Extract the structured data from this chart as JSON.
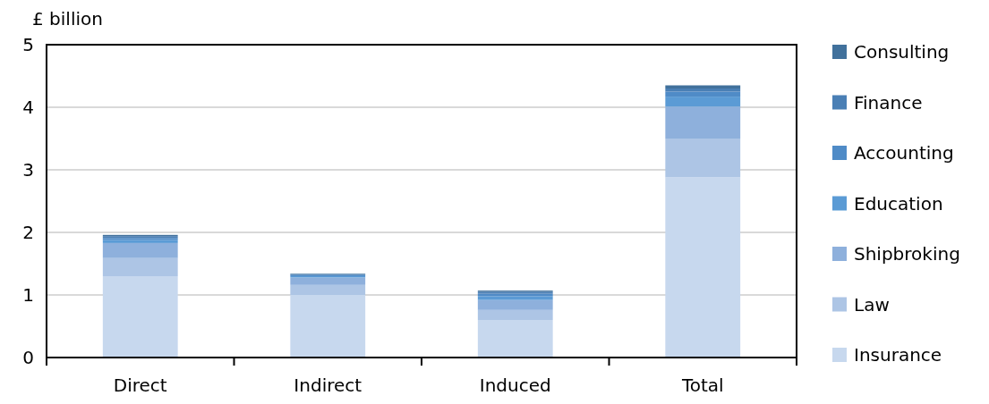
{
  "chart_data": {
    "type": "bar",
    "stacked": true,
    "ylabel": "£ billion",
    "categories": [
      "Direct",
      "Indirect",
      "Induced",
      "Total"
    ],
    "series": [
      {
        "name": "Insurance",
        "color": "#c7d8ee",
        "values": [
          1.3,
          1.0,
          0.6,
          2.88
        ]
      },
      {
        "name": "Law",
        "color": "#adc5e5",
        "values": [
          0.29,
          0.16,
          0.16,
          0.62
        ]
      },
      {
        "name": "Shipbroking",
        "color": "#8eb0dc",
        "values": [
          0.24,
          0.12,
          0.16,
          0.51
        ]
      },
      {
        "name": "Education",
        "color": "#5b9bd5",
        "values": [
          0.05,
          0.02,
          0.06,
          0.16
        ]
      },
      {
        "name": "Accounting",
        "color": "#4f8bc7",
        "values": [
          0.03,
          0.02,
          0.04,
          0.08
        ]
      },
      {
        "name": "Finance",
        "color": "#4a7fb5",
        "values": [
          0.03,
          0.01,
          0.03,
          0.05
        ]
      },
      {
        "name": "Consulting",
        "color": "#41719c",
        "values": [
          0.02,
          0.01,
          0.02,
          0.05
        ]
      }
    ],
    "ylim": [
      0,
      5
    ],
    "yticks": [
      0,
      1,
      2,
      3,
      4,
      5
    ],
    "grid": "y",
    "legend": "right"
  }
}
